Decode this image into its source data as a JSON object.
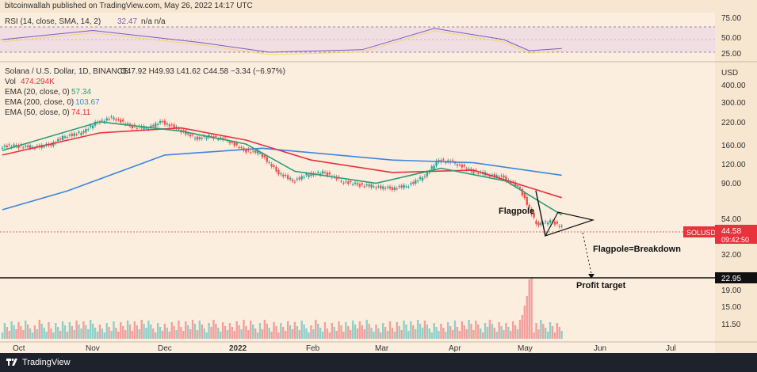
{
  "header": {
    "published": "bitcoinwallah published on TradingView.com, May 26, 2022 14:17 UTC"
  },
  "footer": {
    "brand": "TradingView"
  },
  "legend": {
    "symbol": "Solana / U.S. Dollar, 1D, BINANCE",
    "ohlc": "O47.92 H49.93 L41.62 C44.58 −3.34 (−6.97%)",
    "vol_label": "Vol",
    "vol_value": "474.294K",
    "ema20_label": "EMA (20, close, 0)",
    "ema20_value": "57.34",
    "ema200_label": "EMA (200, close, 0)",
    "ema200_value": "103.67",
    "ema50_label": "EMA (50, close, 0)",
    "ema50_value": "74.11"
  },
  "rsi_legend": {
    "label": "RSI (14, close, SMA, 14, 2)",
    "value": "32.47",
    "extra": "n/a  n/a"
  },
  "rsi_axis": [
    "75.00",
    "50.00",
    "25.00"
  ],
  "price_axis": {
    "unit": "USD",
    "ticks": [
      "400.00",
      "300.00",
      "220.00",
      "160.00",
      "120.00",
      "90.00",
      "54.00",
      "32.00",
      "19.00",
      "15.00",
      "11.50"
    ]
  },
  "price_tag": {
    "symbol": "SOLUSD",
    "price": "44.58",
    "countdown": "09:42:50"
  },
  "level_tag": "22.95",
  "x_axis": [
    "Oct",
    "Nov",
    "Dec",
    "2022",
    "Feb",
    "Mar",
    "Apr",
    "May",
    "Jun",
    "Jul"
  ],
  "annotations": {
    "flagpole": "Flagpole",
    "breakdown": "Flagpole=Breakdown",
    "target": "Profit target"
  },
  "colors": {
    "ema20": "#2e9b78",
    "ema200": "#3d85e0",
    "ema50": "#e8323c",
    "up": "#26a69a",
    "down": "#ef5350",
    "rsi": "#7e57c2",
    "rsi_sma": "#f5d64b"
  },
  "chart_data": {
    "type": "candlestick",
    "scale": "log",
    "x_range": [
      "2021-09-26",
      "2022-07-31"
    ],
    "y_range": [
      20,
      550
    ],
    "candles_weekly": [
      {
        "date": "2021-09-27",
        "close": 160
      },
      {
        "date": "2021-10-04",
        "close": 158
      },
      {
        "date": "2021-10-11",
        "close": 162
      },
      {
        "date": "2021-10-18",
        "close": 185
      },
      {
        "date": "2021-10-25",
        "close": 195
      },
      {
        "date": "2021-11-01",
        "close": 230
      },
      {
        "date": "2021-11-08",
        "close": 245
      },
      {
        "date": "2021-11-15",
        "close": 215
      },
      {
        "date": "2021-11-22",
        "close": 210
      },
      {
        "date": "2021-11-29",
        "close": 230
      },
      {
        "date": "2021-12-06",
        "close": 205
      },
      {
        "date": "2021-12-13",
        "close": 180
      },
      {
        "date": "2021-12-20",
        "close": 185
      },
      {
        "date": "2021-12-27",
        "close": 175
      },
      {
        "date": "2022-01-03",
        "close": 150
      },
      {
        "date": "2022-01-10",
        "close": 145
      },
      {
        "date": "2022-01-17",
        "close": 110
      },
      {
        "date": "2022-01-24",
        "close": 95
      },
      {
        "date": "2022-01-31",
        "close": 105
      },
      {
        "date": "2022-02-07",
        "close": 108
      },
      {
        "date": "2022-02-14",
        "close": 95
      },
      {
        "date": "2022-02-21",
        "close": 90
      },
      {
        "date": "2022-02-28",
        "close": 88
      },
      {
        "date": "2022-03-07",
        "close": 85
      },
      {
        "date": "2022-03-14",
        "close": 88
      },
      {
        "date": "2022-03-21",
        "close": 100
      },
      {
        "date": "2022-03-28",
        "close": 130
      },
      {
        "date": "2022-04-04",
        "close": 125
      },
      {
        "date": "2022-04-11",
        "close": 110
      },
      {
        "date": "2022-04-18",
        "close": 105
      },
      {
        "date": "2022-04-25",
        "close": 100
      },
      {
        "date": "2022-05-02",
        "close": 85
      },
      {
        "date": "2022-05-09",
        "close": 50
      },
      {
        "date": "2022-05-16",
        "close": 52
      },
      {
        "date": "2022-05-23",
        "close": 45
      }
    ],
    "ema20": [
      [
        "2021-09-27",
        150
      ],
      [
        "2021-11-08",
        230
      ],
      [
        "2021-12-13",
        200
      ],
      [
        "2022-01-10",
        165
      ],
      [
        "2022-01-31",
        110
      ],
      [
        "2022-03-07",
        92
      ],
      [
        "2022-04-04",
        115
      ],
      [
        "2022-05-02",
        95
      ],
      [
        "2022-05-26",
        57.34
      ]
    ],
    "ema50": [
      [
        "2021-09-27",
        140
      ],
      [
        "2021-11-08",
        195
      ],
      [
        "2021-12-13",
        210
      ],
      [
        "2022-01-10",
        175
      ],
      [
        "2022-02-07",
        130
      ],
      [
        "2022-03-14",
        108
      ],
      [
        "2022-04-18",
        112
      ],
      [
        "2022-05-26",
        74.11
      ]
    ],
    "ema200": [
      [
        "2021-09-27",
        62
      ],
      [
        "2021-10-25",
        82
      ],
      [
        "2021-12-06",
        140
      ],
      [
        "2022-01-17",
        155
      ],
      [
        "2022-03-14",
        130
      ],
      [
        "2022-04-18",
        125
      ],
      [
        "2022-05-26",
        103.67
      ]
    ],
    "levels": [
      {
        "name": "profit-target",
        "value": 22.95
      }
    ],
    "rsi": [
      [
        "2021-09-27",
        50
      ],
      [
        "2021-11-05",
        68
      ],
      [
        "2021-12-20",
        45
      ],
      [
        "2022-01-20",
        25
      ],
      [
        "2022-03-01",
        30
      ],
      [
        "2022-04-01",
        72
      ],
      [
        "2022-05-01",
        50
      ],
      [
        "2022-05-12",
        28
      ],
      [
        "2022-05-26",
        32.47
      ]
    ],
    "rsi_levels": [
      70,
      50,
      30
    ]
  }
}
